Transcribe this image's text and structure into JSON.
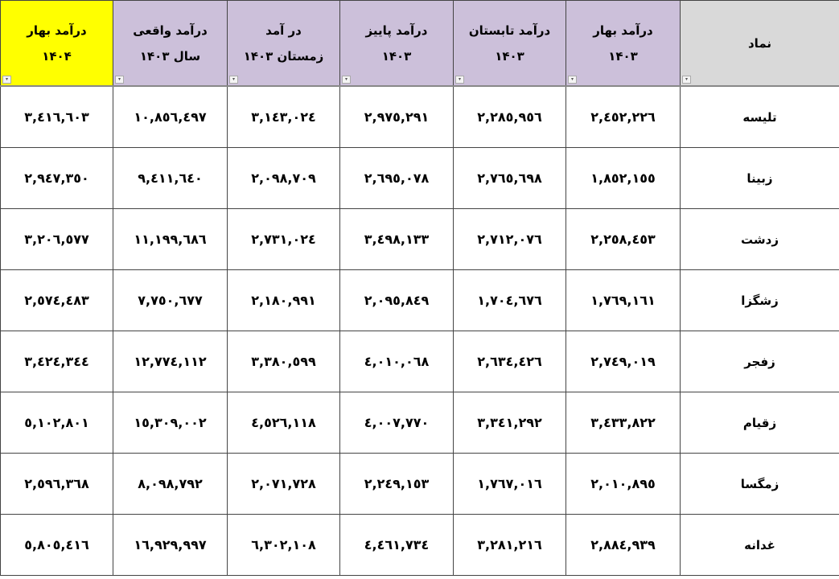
{
  "headers": [
    {
      "line1": "نماد",
      "line2": ""
    },
    {
      "line1": "درآمد بهار",
      "line2": "۱۴۰۳"
    },
    {
      "line1": "درآمد تابستان",
      "line2": "۱۴۰۳"
    },
    {
      "line1": "درآمد پاییز",
      "line2": "۱۴۰۳"
    },
    {
      "line1": "در آمد",
      "line2": "زمستان ۱۴۰۳"
    },
    {
      "line1": "درآمد واقعی",
      "line2": "سال  ۱۴۰۳"
    },
    {
      "line1": "درآمد بهار",
      "line2": "۱۴۰۴"
    }
  ],
  "highlight_color": "#ffff00",
  "header_color": "#ccc0da",
  "rows": [
    {
      "name": "تلیسه",
      "values": [
        "٢,٤٥٢,٢٢٦",
        "٢,٢٨٥,٩٥٦",
        "٢,٩٧٥,٢٩١",
        "٣,١٤٣,٠٢٤",
        "١٠,٨٥٦,٤٩٧",
        "٣,٤١٦,٦٠٣"
      ]
    },
    {
      "name": "زبینا",
      "values": [
        "١,٨٥٢,١٥٥",
        "٢,٧٦٥,٦٩٨",
        "٢,٦٩٥,٠٧٨",
        "٢,٠٩٨,٧٠٩",
        "٩,٤١١,٦٤٠",
        "٢,٩٤٧,٣٥٠"
      ]
    },
    {
      "name": "زدشت",
      "values": [
        "٢,٢٥٨,٤٥٣",
        "٢,٧١٢,٠٧٦",
        "٣,٤٩٨,١٣٣",
        "٢,٧٣١,٠٢٤",
        "١١,١٩٩,٦٨٦",
        "٣,٢٠٦,٥٧٧"
      ]
    },
    {
      "name": "زشگزا",
      "values": [
        "١,٧٦٩,١٦١",
        "١,٧٠٤,٦٧٦",
        "٢,٠٩٥,٨٤٩",
        "٢,١٨٠,٩٩١",
        "٧,٧٥٠,٦٧٧",
        "٢,٥٧٤,٤٨٣"
      ]
    },
    {
      "name": "زفجر",
      "values": [
        "٢,٧٤٩,٠١٩",
        "٢,٦٣٤,٤٢٦",
        "٤,٠١٠,٠٦٨",
        "٣,٣٨٠,٥٩٩",
        "١٢,٧٧٤,١١٢",
        "٣,٤٢٤,٣٤٤"
      ]
    },
    {
      "name": "زقیام",
      "values": [
        "٣,٤٣٣,٨٢٢",
        "٣,٣٤١,٢٩٢",
        "٤,٠٠٧,٧٧٠",
        "٤,٥٢٦,١١٨",
        "١٥,٣٠٩,٠٠٢",
        "٥,١٠٢,٨٠١"
      ]
    },
    {
      "name": "زمگسا",
      "values": [
        "٢,٠١٠,٨٩٥",
        "١,٧٦٧,٠١٦",
        "٢,٢٤٩,١٥٣",
        "٢,٠٧١,٧٢٨",
        "٨,٠٩٨,٧٩٢",
        "٢,٥٩٦,٣٦٨"
      ]
    },
    {
      "name": "غدانه",
      "values": [
        "٢,٨٨٤,٩٣٩",
        "٣,٢٨١,٢١٦",
        "٤,٤٦١,٧٣٤",
        "٦,٣٠٢,١٠٨",
        "١٦,٩٢٩,٩٩٧",
        "٥,٨٠٥,٤١٦"
      ]
    }
  ]
}
